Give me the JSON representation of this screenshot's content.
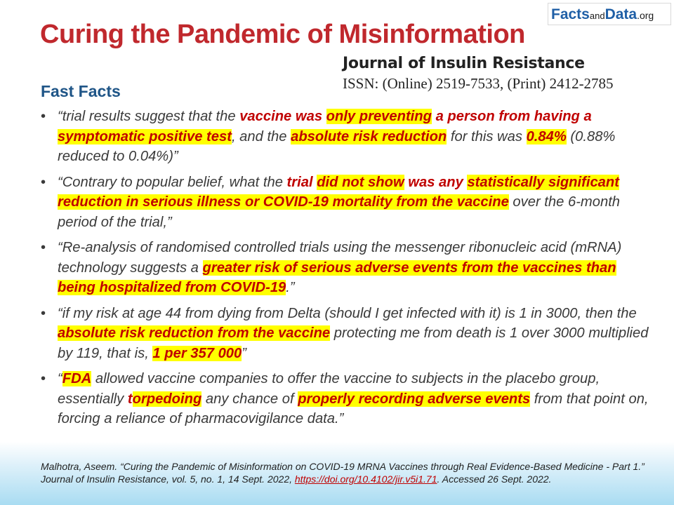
{
  "logo": {
    "part1": "Facts",
    "part2": "and",
    "part3": "Data",
    "part4": ".org"
  },
  "title": "Curing the Pandemic of Misinformation",
  "journal": {
    "name": "Journal of Insulin Resistance",
    "issn": "ISSN: (Online) 2519-7533, (Print) 2412-2785"
  },
  "subtitle": "Fast Facts",
  "facts": [
    [
      {
        "t": "“trial results suggest that the ",
        "s": "n"
      },
      {
        "t": "vaccine was ",
        "s": "r"
      },
      {
        "t": "only preventing",
        "s": "h"
      },
      {
        "t": " a person from having a ",
        "s": "r"
      },
      {
        "t": "symptomatic positive test",
        "s": "h"
      },
      {
        "t": ", and the ",
        "s": "n"
      },
      {
        "t": "absolute risk reduction",
        "s": "h"
      },
      {
        "t": " for this was ",
        "s": "n"
      },
      {
        "t": "0.84%",
        "s": "h"
      },
      {
        "t": " (0.88% reduced to 0.04%)”",
        "s": "n"
      }
    ],
    [
      {
        "t": "“Contrary to popular belief, what the ",
        "s": "n"
      },
      {
        "t": "trial ",
        "s": "r"
      },
      {
        "t": "did not show",
        "s": "h"
      },
      {
        "t": " was any ",
        "s": "r"
      },
      {
        "t": "statistically significant reduction in serious illness or COVID-19 mortality from the vaccine",
        "s": "h"
      },
      {
        "t": " over the 6-month period of the trial,”",
        "s": "n"
      }
    ],
    [
      {
        "t": "“Re-analysis of randomised controlled trials using the messenger ribonucleic acid (mRNA) technology suggests a ",
        "s": "n"
      },
      {
        "t": "greater risk of serious adverse events from the vaccines than being hospitalized from COVID-19",
        "s": "h"
      },
      {
        "t": ".”",
        "s": "n"
      }
    ],
    [
      {
        "t": "“if my risk at age 44 from dying from Delta (should I get infected with it) is 1 in 3000, then the ",
        "s": "n"
      },
      {
        "t": "absolute risk reduction from the vaccine",
        "s": "h"
      },
      {
        "t": " protecting me from death is 1 over 3000 multiplied by 119, that is, ",
        "s": "n"
      },
      {
        "t": "1 per 357 000",
        "s": "h"
      },
      {
        "t": "”",
        "s": "n"
      }
    ],
    [
      {
        "t": " “",
        "s": "n"
      },
      {
        "t": "FDA",
        "s": "h"
      },
      {
        "t": " allowed vaccine companies to offer the vaccine to subjects in the placebo group, essentially ",
        "s": "n"
      },
      {
        "t": "t",
        "s": "r"
      },
      {
        "t": "orpedoing",
        "s": "h"
      },
      {
        "t": " any chance of ",
        "s": "n"
      },
      {
        "t": "properly recording adverse events",
        "s": "h"
      },
      {
        "t": " from that point on, forcing a reliance of pharmacovigilance data.”",
        "s": "n"
      }
    ]
  ],
  "citation": {
    "text": "Malhotra, Aseem. “Curing the Pandemic of Misinformation on COVID-19 MRNA Vaccines through Real Evidence-Based Medicine - Part 1.” Journal of Insulin Resistance, vol. 5, no. 1, 14 Sept. 2022, ",
    "link": "https://doi.org/10.4102/jir.v5i1.71",
    "after": ". Accessed 26 Sept. 2022."
  }
}
